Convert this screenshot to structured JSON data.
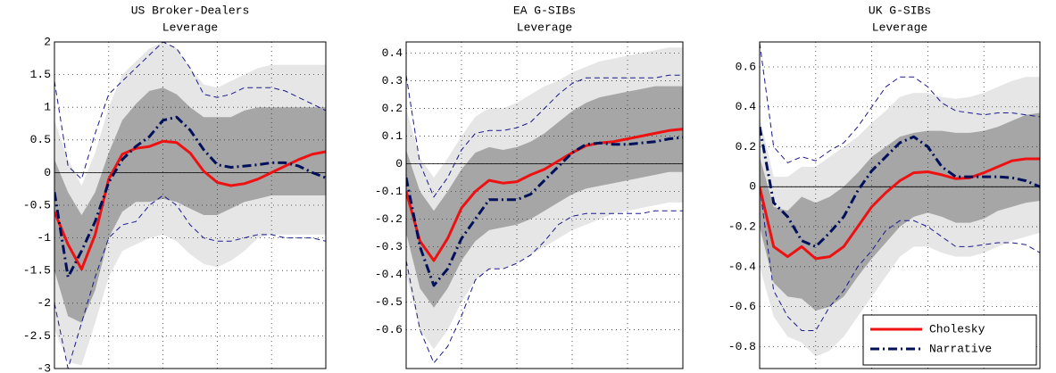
{
  "chart_data": [
    {
      "type": "line",
      "title": "US Broker-Dealers",
      "subtitle": "Leverage",
      "x": [
        0,
        1,
        2,
        3,
        4,
        5,
        6,
        7,
        8,
        9,
        10,
        11,
        12,
        13,
        14,
        15,
        16,
        17,
        18,
        19,
        20
      ],
      "xlim": [
        0,
        20
      ],
      "xticks": [
        0,
        4,
        8,
        12,
        16,
        20
      ],
      "ylim": [
        -3,
        2
      ],
      "yticks": [
        -3,
        -2.5,
        -2,
        -1.5,
        -1,
        -0.5,
        0,
        0.5,
        1,
        1.5,
        2
      ],
      "grid": true,
      "hline": 0,
      "bands": [
        {
          "color": "#e6e6e6",
          "upper": [
            0.8,
            0.2,
            -0.2,
            0.3,
            1.0,
            1.5,
            1.7,
            1.9,
            2.0,
            1.9,
            1.6,
            1.35,
            1.3,
            1.4,
            1.5,
            1.6,
            1.65,
            1.65,
            1.65,
            1.65,
            1.65
          ],
          "lower": [
            -2.4,
            -2.9,
            -2.95,
            -2.3,
            -1.6,
            -1.2,
            -1.1,
            -1.0,
            -0.95,
            -1.05,
            -1.25,
            -1.4,
            -1.45,
            -1.35,
            -1.2,
            -1.0,
            -0.95,
            -0.95,
            -0.95,
            -0.95,
            -0.95
          ]
        },
        {
          "color": "#a6a6a6",
          "upper": [
            0.2,
            -0.3,
            -0.65,
            -0.3,
            0.3,
            0.8,
            1.05,
            1.25,
            1.3,
            1.2,
            1.0,
            0.85,
            0.85,
            0.85,
            0.95,
            1.0,
            1.0,
            1.0,
            1.0,
            1.0,
            1.0
          ],
          "lower": [
            -1.5,
            -2.2,
            -2.3,
            -1.8,
            -1.0,
            -0.6,
            -0.45,
            -0.45,
            -0.4,
            -0.45,
            -0.55,
            -0.65,
            -0.65,
            -0.55,
            -0.45,
            -0.4,
            -0.35,
            -0.35,
            -0.35,
            -0.35,
            -0.35
          ]
        }
      ],
      "dashed_bands": [
        {
          "color": "#1a1a8c",
          "upper": [
            1.4,
            0.1,
            -0.1,
            0.6,
            1.2,
            1.4,
            1.6,
            1.8,
            2.0,
            1.9,
            1.6,
            1.2,
            1.15,
            1.2,
            1.3,
            1.3,
            1.3,
            1.25,
            1.15,
            1.05,
            0.95
          ],
          "lower": [
            -2.0,
            -3.0,
            -2.3,
            -1.6,
            -1.0,
            -0.8,
            -0.75,
            -0.5,
            -0.35,
            -0.5,
            -0.8,
            -1.0,
            -1.05,
            -1.05,
            -1.0,
            -0.95,
            -0.95,
            -1.0,
            -1.0,
            -1.0,
            -1.05
          ]
        }
      ],
      "series": [
        {
          "color": "#ee1111",
          "style": "solid",
          "values": [
            -0.6,
            -1.1,
            -1.48,
            -0.95,
            -0.1,
            0.28,
            0.37,
            0.4,
            0.48,
            0.46,
            0.3,
            0.02,
            -0.15,
            -0.2,
            -0.17,
            -0.1,
            0.0,
            0.1,
            0.2,
            0.28,
            0.32
          ]
        },
        {
          "color": "#00105a",
          "style": "dashdot",
          "values": [
            -0.3,
            -1.6,
            -1.2,
            -0.75,
            -0.15,
            0.2,
            0.4,
            0.55,
            0.8,
            0.85,
            0.65,
            0.35,
            0.12,
            0.08,
            0.1,
            0.12,
            0.15,
            0.15,
            0.1,
            0.0,
            -0.08
          ]
        }
      ]
    },
    {
      "type": "line",
      "title": "EA G-SIBs",
      "subtitle": "Leverage",
      "x": [
        0,
        1,
        2,
        3,
        4,
        5,
        6,
        7,
        8,
        9,
        10,
        11,
        12,
        13,
        14,
        15,
        16,
        17,
        18,
        19,
        20
      ],
      "xlim": [
        0,
        20
      ],
      "xticks": [
        0,
        4,
        8,
        12,
        16,
        20
      ],
      "ylim": [
        -0.74,
        0.44
      ],
      "yticks": [
        -0.6,
        -0.5,
        -0.4,
        -0.3,
        -0.2,
        -0.1,
        0,
        0.1,
        0.2,
        0.3,
        0.4
      ],
      "grid": true,
      "hline": 0,
      "bands": [
        {
          "color": "#e6e6e6",
          "upper": [
            0.2,
            0.02,
            -0.05,
            0.02,
            0.1,
            0.17,
            0.2,
            0.2,
            0.22,
            0.25,
            0.28,
            0.3,
            0.33,
            0.35,
            0.37,
            0.38,
            0.39,
            0.4,
            0.41,
            0.42,
            0.42
          ],
          "lower": [
            -0.4,
            -0.6,
            -0.67,
            -0.6,
            -0.5,
            -0.42,
            -0.38,
            -0.38,
            -0.36,
            -0.33,
            -0.3,
            -0.27,
            -0.24,
            -0.22,
            -0.2,
            -0.18,
            -0.17,
            -0.16,
            -0.15,
            -0.14,
            -0.14
          ]
        },
        {
          "color": "#a6a6a6",
          "upper": [
            0.05,
            -0.1,
            -0.17,
            -0.1,
            -0.02,
            0.04,
            0.06,
            0.05,
            0.06,
            0.08,
            0.11,
            0.15,
            0.19,
            0.22,
            0.24,
            0.25,
            0.26,
            0.27,
            0.28,
            0.28,
            0.28
          ],
          "lower": [
            -0.25,
            -0.45,
            -0.52,
            -0.45,
            -0.35,
            -0.28,
            -0.24,
            -0.23,
            -0.22,
            -0.2,
            -0.17,
            -0.14,
            -0.11,
            -0.09,
            -0.08,
            -0.07,
            -0.06,
            -0.05,
            -0.04,
            -0.03,
            -0.03
          ]
        }
      ],
      "dashed_bands": [
        {
          "color": "#1a1a8c",
          "upper": [
            0.32,
            0.0,
            -0.12,
            -0.05,
            0.05,
            0.11,
            0.12,
            0.12,
            0.13,
            0.15,
            0.2,
            0.25,
            0.29,
            0.31,
            0.31,
            0.31,
            0.31,
            0.31,
            0.31,
            0.32,
            0.32
          ],
          "lower": [
            -0.35,
            -0.6,
            -0.72,
            -0.66,
            -0.55,
            -0.42,
            -0.38,
            -0.38,
            -0.36,
            -0.33,
            -0.28,
            -0.22,
            -0.19,
            -0.18,
            -0.18,
            -0.18,
            -0.18,
            -0.18,
            -0.17,
            -0.17,
            -0.17
          ]
        }
      ],
      "series": [
        {
          "color": "#ee1111",
          "style": "solid",
          "values": [
            -0.1,
            -0.28,
            -0.35,
            -0.27,
            -0.16,
            -0.1,
            -0.06,
            -0.07,
            -0.065,
            -0.04,
            -0.02,
            0.01,
            0.04,
            0.065,
            0.075,
            0.08,
            0.09,
            0.1,
            0.11,
            0.12,
            0.125
          ]
        },
        {
          "color": "#00105a",
          "style": "dashdot",
          "values": [
            -0.05,
            -0.3,
            -0.44,
            -0.38,
            -0.27,
            -0.2,
            -0.13,
            -0.13,
            -0.13,
            -0.11,
            -0.06,
            -0.01,
            0.04,
            0.07,
            0.075,
            0.07,
            0.07,
            0.075,
            0.08,
            0.09,
            0.095
          ]
        }
      ]
    },
    {
      "type": "line",
      "title": "UK G-SIBs",
      "subtitle": "Leverage",
      "x": [
        0,
        1,
        2,
        3,
        4,
        5,
        6,
        7,
        8,
        9,
        10,
        11,
        12,
        13,
        14,
        15,
        16,
        17,
        18,
        19,
        20
      ],
      "xlim": [
        0,
        20
      ],
      "xticks": [
        0,
        4,
        8,
        12,
        16,
        20
      ],
      "ylim": [
        -0.91,
        0.725
      ],
      "yticks": [
        -0.8,
        -0.6,
        -0.4,
        -0.2,
        0,
        0.2,
        0.4,
        0.6
      ],
      "grid": true,
      "hline": 0,
      "legend": "lower right",
      "bands": [
        {
          "color": "#e6e6e6",
          "upper": [
            0.35,
            0.05,
            0.05,
            0.1,
            0.1,
            0.15,
            0.2,
            0.25,
            0.32,
            0.38,
            0.45,
            0.47,
            0.47,
            0.45,
            0.44,
            0.45,
            0.47,
            0.5,
            0.53,
            0.55,
            0.55
          ],
          "lower": [
            -0.4,
            -0.65,
            -0.75,
            -0.78,
            -0.85,
            -0.82,
            -0.75,
            -0.65,
            -0.55,
            -0.45,
            -0.35,
            -0.3,
            -0.3,
            -0.33,
            -0.35,
            -0.35,
            -0.33,
            -0.3,
            -0.27,
            -0.25,
            -0.23
          ]
        },
        {
          "color": "#a6a6a6",
          "upper": [
            0.15,
            -0.1,
            -0.12,
            -0.05,
            -0.08,
            -0.05,
            0.0,
            0.07,
            0.15,
            0.2,
            0.25,
            0.27,
            0.28,
            0.28,
            0.27,
            0.27,
            0.28,
            0.3,
            0.33,
            0.36,
            0.37
          ],
          "lower": [
            -0.2,
            -0.48,
            -0.55,
            -0.56,
            -0.62,
            -0.6,
            -0.55,
            -0.45,
            -0.36,
            -0.28,
            -0.2,
            -0.15,
            -0.13,
            -0.15,
            -0.18,
            -0.18,
            -0.16,
            -0.12,
            -0.1,
            -0.08,
            -0.07
          ]
        }
      ],
      "dashed_bands": [
        {
          "color": "#1a1a8c",
          "upper": [
            0.72,
            0.2,
            0.12,
            0.15,
            0.13,
            0.18,
            0.22,
            0.3,
            0.4,
            0.5,
            0.55,
            0.55,
            0.5,
            0.42,
            0.38,
            0.37,
            0.36,
            0.37,
            0.37,
            0.36,
            0.35
          ],
          "lower": [
            0.0,
            -0.52,
            -0.65,
            -0.72,
            -0.72,
            -0.6,
            -0.52,
            -0.4,
            -0.32,
            -0.22,
            -0.17,
            -0.17,
            -0.2,
            -0.25,
            -0.3,
            -0.3,
            -0.29,
            -0.28,
            -0.28,
            -0.29,
            -0.33
          ]
        }
      ],
      "series": [
        {
          "name": "Cholesky",
          "color": "#ee1111",
          "style": "solid",
          "values": [
            0,
            -0.3,
            -0.35,
            -0.3,
            -0.36,
            -0.35,
            -0.3,
            -0.2,
            -0.1,
            -0.03,
            0.03,
            0.07,
            0.075,
            0.06,
            0.04,
            0.045,
            0.07,
            0.1,
            0.13,
            0.14,
            0.14
          ]
        },
        {
          "name": "Narrative",
          "color": "#00105a",
          "style": "dashdot",
          "values": [
            0.3,
            -0.08,
            -0.15,
            -0.27,
            -0.3,
            -0.23,
            -0.15,
            -0.02,
            0.08,
            0.15,
            0.22,
            0.25,
            0.2,
            0.1,
            0.05,
            0.05,
            0.05,
            0.05,
            0.045,
            0.03,
            0.0
          ]
        }
      ]
    }
  ]
}
